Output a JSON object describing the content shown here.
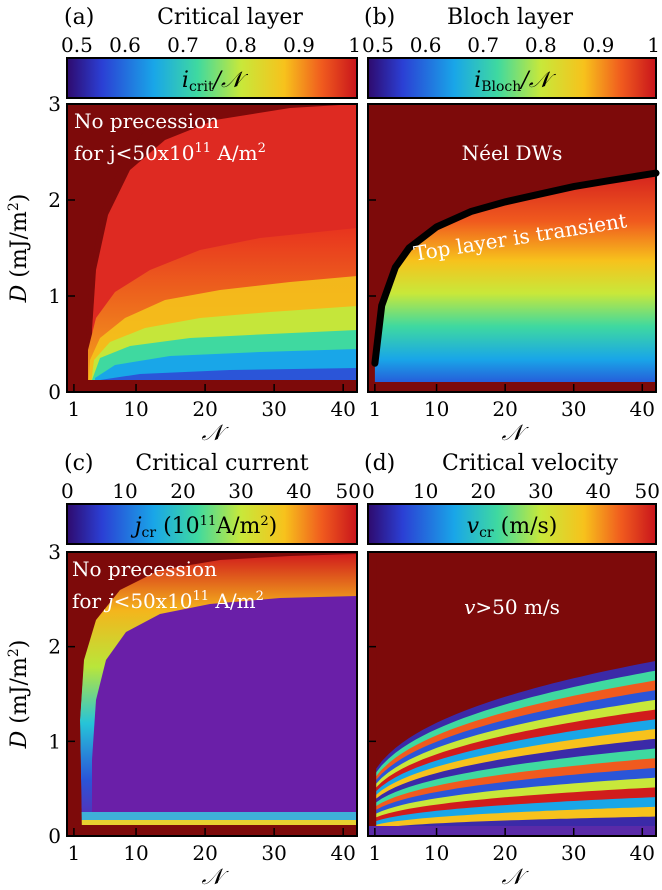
{
  "chart_data": [
    {
      "type": "heatmap",
      "panel": "(a)",
      "title": "Critical layer",
      "colorbar": {
        "label_main": "i",
        "label_sub": "crit",
        "label_tail": "/𝒩",
        "ticks": [
          "0.5",
          "0.6",
          "0.7",
          "0.8",
          "0.9",
          "1"
        ],
        "range": [
          0.5,
          1
        ]
      },
      "x": {
        "label": "𝒩",
        "ticks": [
          "1",
          "10",
          "20",
          "30",
          "40"
        ],
        "tick_values": [
          1,
          10,
          20,
          30,
          40
        ],
        "range": [
          0,
          42
        ]
      },
      "y": {
        "label_var": "D",
        "label_unit": " (mJ/m",
        "label_sup": "2",
        "label_end": ")",
        "ticks": [
          "0",
          "1",
          "2",
          "3"
        ],
        "tick_values": [
          0,
          1,
          2,
          3
        ],
        "range": [
          0,
          3
        ]
      },
      "annotations": [
        {
          "id": "no-precession",
          "line1": "No precession",
          "line2_pre": "for j<50x10",
          "line2_sup": "11",
          "line2_post": " A/m",
          "line2_sup2": "2"
        }
      ]
    },
    {
      "type": "heatmap",
      "panel": "(b)",
      "title": "Bloch layer",
      "colorbar": {
        "label_main": "i",
        "label_sub": "Bloch",
        "label_tail": "/𝒩",
        "ticks": [
          "0.5",
          "0.6",
          "0.7",
          "0.8",
          "0.9",
          "1"
        ],
        "range": [
          0.5,
          1
        ]
      },
      "x": {
        "label": "𝒩",
        "ticks": [
          "1",
          "10",
          "20",
          "30",
          "40"
        ],
        "tick_values": [
          1,
          10,
          20,
          30,
          40
        ],
        "range": [
          0,
          42
        ]
      },
      "y": {
        "ticks": [],
        "range": [
          0,
          3
        ]
      },
      "boundary_curve": {
        "x": [
          1,
          2,
          4,
          6,
          10,
          15,
          20,
          25,
          30,
          35,
          42
        ],
        "y": [
          0.3,
          0.9,
          1.3,
          1.5,
          1.72,
          1.88,
          1.98,
          2.06,
          2.14,
          2.2,
          2.28
        ]
      },
      "annotations": [
        {
          "id": "neel",
          "text": "Néel DWs"
        },
        {
          "id": "transient",
          "text": "Top layer is transient"
        }
      ]
    },
    {
      "type": "heatmap",
      "panel": "(c)",
      "title": "Critical current",
      "colorbar": {
        "label_main": "j",
        "label_sub": "cr",
        "label_tail": " (10",
        "label_sup": "11",
        "label_end": "A/m",
        "label_sup2": "2",
        "label_close": ")",
        "ticks": [
          "0",
          "10",
          "20",
          "30",
          "40",
          "50"
        ],
        "range": [
          0,
          50
        ]
      },
      "x": {
        "label": "𝒩",
        "ticks": [
          "1",
          "10",
          "20",
          "30",
          "40"
        ],
        "tick_values": [
          1,
          10,
          20,
          30,
          40
        ],
        "range": [
          0,
          42
        ]
      },
      "y": {
        "label_var": "D",
        "label_unit": " (mJ/m",
        "label_sup": "2",
        "label_end": ")",
        "ticks": [
          "0",
          "1",
          "2",
          "3"
        ],
        "tick_values": [
          0,
          1,
          2,
          3
        ],
        "range": [
          0,
          3
        ]
      },
      "annotations": [
        {
          "id": "no-precession",
          "line1": "No precession",
          "line2_pre": "for ",
          "line2_var": "j",
          "line2_mid": "<50x10",
          "line2_sup": "11",
          "line2_post": " A/m",
          "line2_sup2": "2"
        }
      ]
    },
    {
      "type": "heatmap",
      "panel": "(d)",
      "title": "Critical velocity",
      "colorbar": {
        "label_main": "v",
        "label_sub": "cr",
        "label_tail": " (m/s)",
        "ticks": [
          "0",
          "10",
          "20",
          "30",
          "40",
          "50"
        ],
        "range": [
          0,
          50
        ]
      },
      "x": {
        "label": "𝒩",
        "ticks": [
          "1",
          "10",
          "20",
          "30",
          "40"
        ],
        "tick_values": [
          1,
          10,
          20,
          30,
          40
        ],
        "range": [
          0,
          42
        ]
      },
      "y": {
        "ticks": [],
        "range": [
          0,
          3
        ]
      },
      "annotations": [
        {
          "id": "v50",
          "var": "v",
          "text": ">50 m/s"
        }
      ]
    }
  ]
}
